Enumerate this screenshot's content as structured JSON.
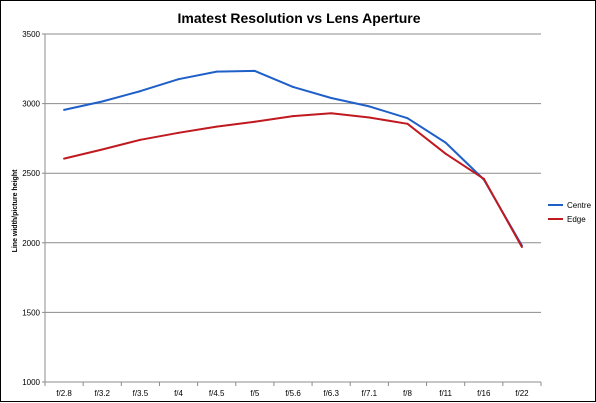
{
  "chart_data": {
    "type": "line",
    "title": "Imatest Resolution vs Lens Aperture",
    "xlabel": "",
    "ylabel": "Line width/picture height",
    "categories": [
      "f/2.8",
      "f/3.2",
      "f/3.5",
      "f/4",
      "f/4.5",
      "f/5",
      "f/5.6",
      "f/6.3",
      "f/7.1",
      "f/8",
      "f/11",
      "f/16",
      "f/22"
    ],
    "ylim": [
      1000,
      3500
    ],
    "yticks": [
      1000,
      1500,
      2000,
      2500,
      3000,
      3500
    ],
    "grid": "horizontal",
    "legend_position": "right",
    "series": [
      {
        "name": "Centre",
        "color": "#1f5fc8",
        "values": [
          2955,
          3015,
          3090,
          3175,
          3230,
          3235,
          3120,
          3040,
          2980,
          2895,
          2720,
          2455,
          1980
        ]
      },
      {
        "name": "Edge",
        "color": "#c0191f",
        "values": [
          2605,
          2670,
          2740,
          2790,
          2835,
          2870,
          2910,
          2930,
          2900,
          2855,
          2640,
          2460,
          1970
        ]
      }
    ]
  }
}
